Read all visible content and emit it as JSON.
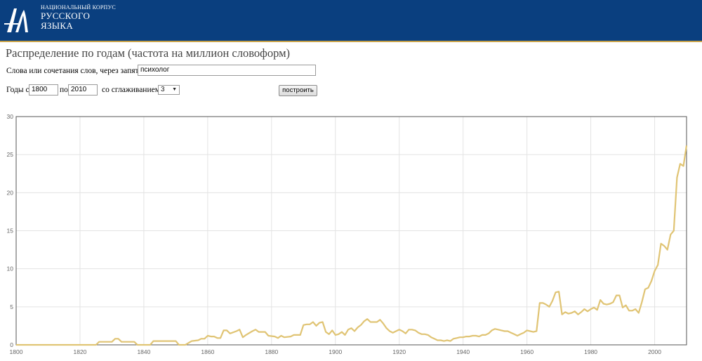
{
  "header": {
    "logo_small": "НАЦИОНАЛЬНЫЙ КОРПУС",
    "logo_line1": "РУССКОГО",
    "logo_line2": "ЯЗЫКА"
  },
  "page": {
    "title": "Распределение по годам (частота на миллион словоформ)"
  },
  "form": {
    "words_label": "Слова или сочетания слов, через запятую:",
    "words_value": "психолог",
    "years_from_label": "Годы с",
    "year_from": "1800",
    "years_to_label": "по",
    "year_to": "2010",
    "smoothing_label": "со сглаживанием",
    "smoothing_value": "3",
    "build_button": "построить"
  },
  "colors": {
    "header_bg": "#0a3f7f",
    "accent": "#c9a24a",
    "series_line": "#e0c474",
    "grid": "#e3e3e3"
  },
  "chart_data": {
    "type": "line",
    "xlim": [
      1800,
      2010
    ],
    "ylim": [
      0,
      30
    ],
    "x_ticks": [
      1800,
      1820,
      1840,
      1860,
      1880,
      1900,
      1920,
      1940,
      1960,
      1980,
      2000
    ],
    "y_ticks": [
      0,
      5,
      10,
      15,
      20,
      25,
      30
    ],
    "grid": true,
    "series": [
      {
        "points": [
          [
            1800,
            0
          ],
          [
            1825,
            0
          ],
          [
            1826,
            0.4
          ],
          [
            1830,
            0.4
          ],
          [
            1831,
            0.8
          ],
          [
            1832,
            0.8
          ],
          [
            1833,
            0.4
          ],
          [
            1837,
            0.4
          ],
          [
            1838,
            0
          ],
          [
            1842,
            0
          ],
          [
            1843,
            0.5
          ],
          [
            1850,
            0.5
          ],
          [
            1851,
            0
          ],
          [
            1853,
            0
          ],
          [
            1855,
            0.5
          ],
          [
            1857,
            0.6
          ],
          [
            1858,
            0.8
          ],
          [
            1859,
            0.8
          ],
          [
            1860,
            1.2
          ],
          [
            1861,
            1.1
          ],
          [
            1862,
            1.1
          ],
          [
            1863,
            0.9
          ],
          [
            1864,
            0.9
          ],
          [
            1865,
            1.9
          ],
          [
            1866,
            1.9
          ],
          [
            1867,
            1.5
          ],
          [
            1869,
            1.8
          ],
          [
            1870,
            2.0
          ],
          [
            1871,
            1.0
          ],
          [
            1872,
            1.3
          ],
          [
            1874,
            1.8
          ],
          [
            1875,
            2.0
          ],
          [
            1876,
            1.7
          ],
          [
            1878,
            1.7
          ],
          [
            1879,
            1.2
          ],
          [
            1881,
            1.1
          ],
          [
            1882,
            0.9
          ],
          [
            1883,
            1.2
          ],
          [
            1884,
            1.0
          ],
          [
            1886,
            1.1
          ],
          [
            1887,
            1.3
          ],
          [
            1888,
            1.3
          ],
          [
            1889,
            1.3
          ],
          [
            1890,
            2.6
          ],
          [
            1891,
            2.7
          ],
          [
            1892,
            2.7
          ],
          [
            1893,
            3.0
          ],
          [
            1894,
            2.5
          ],
          [
            1895,
            2.9
          ],
          [
            1896,
            3.0
          ],
          [
            1897,
            1.7
          ],
          [
            1898,
            1.4
          ],
          [
            1899,
            1.9
          ],
          [
            1900,
            1.3
          ],
          [
            1901,
            1.4
          ],
          [
            1902,
            1.7
          ],
          [
            1903,
            1.3
          ],
          [
            1904,
            2.0
          ],
          [
            1905,
            2.2
          ],
          [
            1906,
            1.8
          ],
          [
            1907,
            2.3
          ],
          [
            1908,
            2.6
          ],
          [
            1909,
            3.1
          ],
          [
            1910,
            3.4
          ],
          [
            1911,
            3.0
          ],
          [
            1912,
            3.0
          ],
          [
            1913,
            3.0
          ],
          [
            1914,
            3.3
          ],
          [
            1915,
            2.8
          ],
          [
            1916,
            2.2
          ],
          [
            1917,
            1.8
          ],
          [
            1918,
            1.6
          ],
          [
            1919,
            1.8
          ],
          [
            1920,
            2.0
          ],
          [
            1921,
            1.8
          ],
          [
            1922,
            1.5
          ],
          [
            1923,
            2.0
          ],
          [
            1924,
            2.0
          ],
          [
            1925,
            1.9
          ],
          [
            1926,
            1.6
          ],
          [
            1927,
            1.4
          ],
          [
            1928,
            1.4
          ],
          [
            1929,
            1.3
          ],
          [
            1930,
            1.0
          ],
          [
            1931,
            0.8
          ],
          [
            1932,
            0.6
          ],
          [
            1933,
            0.6
          ],
          [
            1934,
            0.5
          ],
          [
            1935,
            0.6
          ],
          [
            1936,
            0.5
          ],
          [
            1937,
            0.8
          ],
          [
            1938,
            0.9
          ],
          [
            1939,
            1.0
          ],
          [
            1940,
            1.0
          ],
          [
            1941,
            1.1
          ],
          [
            1942,
            1.1
          ],
          [
            1943,
            1.2
          ],
          [
            1944,
            1.2
          ],
          [
            1945,
            1.1
          ],
          [
            1946,
            1.3
          ],
          [
            1947,
            1.3
          ],
          [
            1948,
            1.5
          ],
          [
            1949,
            1.9
          ],
          [
            1950,
            2.1
          ],
          [
            1951,
            2.0
          ],
          [
            1952,
            1.9
          ],
          [
            1953,
            1.8
          ],
          [
            1954,
            1.8
          ],
          [
            1955,
            1.6
          ],
          [
            1956,
            1.4
          ],
          [
            1957,
            1.2
          ],
          [
            1958,
            1.4
          ],
          [
            1959,
            1.6
          ],
          [
            1960,
            1.9
          ],
          [
            1961,
            1.8
          ],
          [
            1962,
            1.7
          ],
          [
            1963,
            1.8
          ],
          [
            1964,
            5.5
          ],
          [
            1965,
            5.5
          ],
          [
            1966,
            5.3
          ],
          [
            1967,
            5.0
          ],
          [
            1968,
            5.8
          ],
          [
            1969,
            6.9
          ],
          [
            1970,
            7.0
          ],
          [
            1971,
            4.0
          ],
          [
            1972,
            4.3
          ],
          [
            1973,
            4.1
          ],
          [
            1974,
            4.2
          ],
          [
            1975,
            4.4
          ],
          [
            1976,
            4.0
          ],
          [
            1977,
            4.3
          ],
          [
            1978,
            4.7
          ],
          [
            1979,
            4.4
          ],
          [
            1980,
            4.7
          ],
          [
            1981,
            4.9
          ],
          [
            1982,
            4.6
          ],
          [
            1983,
            5.9
          ],
          [
            1984,
            5.4
          ],
          [
            1985,
            5.3
          ],
          [
            1986,
            5.4
          ],
          [
            1987,
            5.6
          ],
          [
            1988,
            6.5
          ],
          [
            1989,
            6.5
          ],
          [
            1990,
            4.9
          ],
          [
            1991,
            5.2
          ],
          [
            1992,
            4.5
          ],
          [
            1993,
            4.5
          ],
          [
            1994,
            4.7
          ],
          [
            1995,
            4.2
          ],
          [
            1996,
            5.6
          ],
          [
            1997,
            7.3
          ],
          [
            1998,
            7.5
          ],
          [
            1999,
            8.4
          ],
          [
            2000,
            9.7
          ],
          [
            2001,
            10.5
          ],
          [
            2002,
            13.3
          ],
          [
            2003,
            13.0
          ],
          [
            2004,
            12.5
          ],
          [
            2005,
            14.5
          ],
          [
            2006,
            15.0
          ],
          [
            2007,
            22.0
          ],
          [
            2008,
            23.8
          ],
          [
            2009,
            23.5
          ],
          [
            2010,
            26.2
          ]
        ]
      }
    ]
  }
}
